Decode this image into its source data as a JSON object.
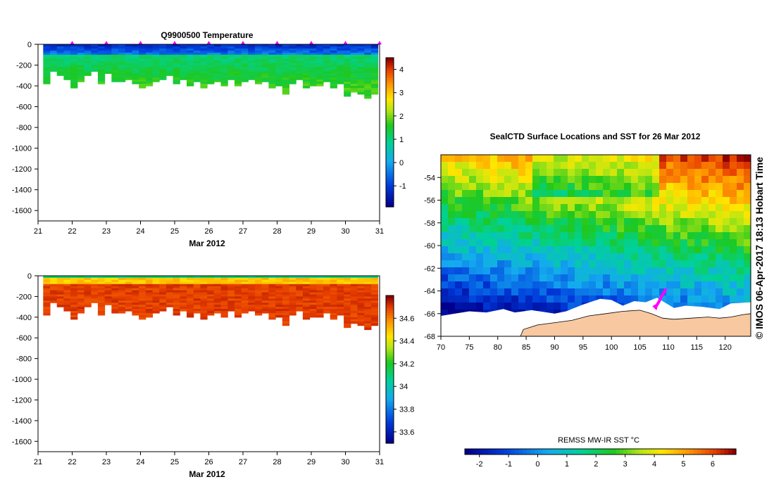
{
  "chart_data": [
    {
      "type": "heatmap",
      "title": "Q9900500  Temperature",
      "xlabel": "Mar 2012",
      "ylabel": "",
      "x_ticks": [
        "21",
        "22",
        "23",
        "24",
        "25",
        "26",
        "27",
        "28",
        "29",
        "30",
        "31"
      ],
      "xlim": [
        21,
        31
      ],
      "y_ticks": [
        "0",
        "-200",
        "-400",
        "-600",
        "-800",
        "-1000",
        "-1200",
        "-1400",
        "-1600"
      ],
      "ylim": [
        -1700,
        0
      ],
      "profile_days": [
        21.25,
        21.45,
        21.65,
        21.85,
        22.05,
        22.25,
        22.45,
        22.65,
        22.85,
        23.05,
        23.25,
        23.45,
        23.65,
        23.85,
        24.05,
        24.25,
        24.45,
        24.65,
        24.85,
        25.05,
        25.25,
        25.45,
        25.65,
        25.85,
        26.05,
        26.25,
        26.45,
        26.65,
        26.85,
        27.05,
        27.25,
        27.45,
        27.65,
        27.85,
        28.05,
        28.25,
        28.45,
        28.65,
        28.85,
        29.05,
        29.25,
        29.45,
        29.65,
        29.85,
        30.05,
        30.25,
        30.45,
        30.65,
        30.85
      ],
      "profile_max_depth_m": [
        380,
        250,
        300,
        330,
        420,
        350,
        300,
        260,
        380,
        280,
        350,
        360,
        330,
        380,
        420,
        400,
        360,
        330,
        300,
        380,
        330,
        400,
        350,
        420,
        380,
        350,
        400,
        330,
        400,
        350,
        330,
        380,
        350,
        420,
        400,
        480,
        380,
        330,
        420,
        390,
        400,
        350,
        420,
        370,
        500,
        460,
        480,
        520,
        480
      ],
      "surface_marker_days": [
        22,
        23,
        24,
        25,
        26,
        27,
        28,
        29,
        30,
        31
      ],
      "surface_value": -1.2,
      "surface_layer_m": 90,
      "deep_value": 1.1,
      "colorbar": {
        "ticks": [
          "4",
          "3",
          "2",
          "1",
          "0",
          "-1"
        ],
        "range": [
          -1.9,
          4.5
        ]
      }
    },
    {
      "type": "heatmap",
      "title": "",
      "xlabel": "Mar 2012",
      "ylabel": "",
      "x_ticks": [
        "21",
        "22",
        "23",
        "24",
        "25",
        "26",
        "27",
        "28",
        "29",
        "30",
        "31"
      ],
      "xlim": [
        21,
        31
      ],
      "y_ticks": [
        "0",
        "-200",
        "-400",
        "-600",
        "-800",
        "-1000",
        "-1200",
        "-1400",
        "-1600"
      ],
      "ylim": [
        -1700,
        0
      ],
      "surface_value": 34.05,
      "mid_value": 34.45,
      "deep_value": 34.72,
      "colorbar": {
        "ticks": [
          "34.6",
          "34.4",
          "34.2",
          "34",
          "33.8",
          "33.6"
        ],
        "range": [
          33.5,
          34.8
        ]
      }
    },
    {
      "type": "heatmap",
      "title": "SealCTD Surface Locations and SST for 26 Mar 2012",
      "xlabel": "",
      "ylabel": "",
      "x_ticks": [
        "70",
        "75",
        "80",
        "85",
        "90",
        "95",
        "100",
        "105",
        "110",
        "115",
        "120"
      ],
      "xlim": [
        70,
        124.5
      ],
      "y_ticks": [
        "-54",
        "-56",
        "-58",
        "-60",
        "-62",
        "-64",
        "-66",
        "-68"
      ],
      "ylim": [
        -68,
        -52
      ],
      "track_lon": [
        107.8,
        108.3,
        108.6,
        108.9,
        109.3,
        109.6
      ],
      "track_lat": [
        -65.4,
        -65.0,
        -64.7,
        -64.4,
        -64.1,
        -63.8
      ],
      "track_color": "#ff00ff",
      "land_color": "#f8c8a0",
      "ice_color": "#ffffff",
      "colorbar": {
        "label": "REMSS MW-IR SST °C",
        "ticks": [
          "-2",
          "-1",
          "0",
          "1",
          "2",
          "3",
          "4",
          "5",
          "6"
        ],
        "range": [
          -2.5,
          6.8
        ]
      }
    }
  ],
  "credit_text": "© IMOS 06-Apr-2017 18:13 Hobart Time"
}
